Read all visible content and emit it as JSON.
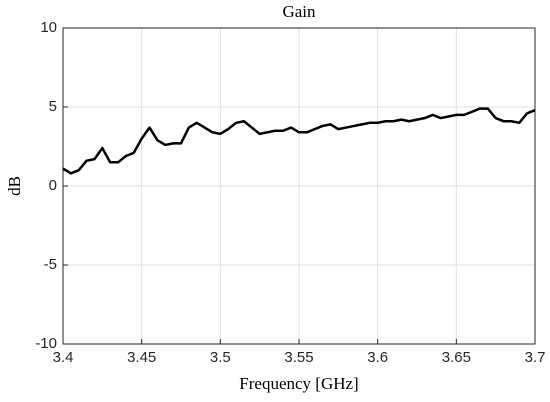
{
  "chart_data": {
    "type": "line",
    "title": "Gain",
    "xlabel": "Frequency [GHz]",
    "ylabel": "dB",
    "x": [
      3.4,
      3.405,
      3.41,
      3.415,
      3.42,
      3.425,
      3.43,
      3.435,
      3.44,
      3.445,
      3.45,
      3.455,
      3.46,
      3.465,
      3.47,
      3.475,
      3.48,
      3.485,
      3.49,
      3.495,
      3.5,
      3.505,
      3.51,
      3.515,
      3.52,
      3.525,
      3.53,
      3.535,
      3.54,
      3.545,
      3.55,
      3.555,
      3.56,
      3.565,
      3.57,
      3.575,
      3.58,
      3.585,
      3.59,
      3.595,
      3.6,
      3.605,
      3.61,
      3.615,
      3.62,
      3.625,
      3.63,
      3.635,
      3.64,
      3.645,
      3.65,
      3.655,
      3.66,
      3.665,
      3.67,
      3.675,
      3.68,
      3.685,
      3.69,
      3.695,
      3.7
    ],
    "series": [
      {
        "name": "Gain",
        "color": "#000000",
        "values": [
          1.1,
          0.8,
          1.0,
          1.6,
          1.7,
          2.4,
          1.5,
          1.5,
          1.9,
          2.1,
          3.0,
          3.7,
          2.9,
          2.6,
          2.7,
          2.7,
          3.7,
          4.0,
          3.7,
          3.4,
          3.3,
          3.6,
          4.0,
          4.1,
          3.7,
          3.3,
          3.4,
          3.5,
          3.5,
          3.7,
          3.4,
          3.4,
          3.6,
          3.8,
          3.9,
          3.6,
          3.7,
          3.8,
          3.9,
          4.0,
          4.0,
          4.1,
          4.1,
          4.2,
          4.1,
          4.2,
          4.3,
          4.5,
          4.3,
          4.4,
          4.5,
          4.5,
          4.7,
          4.9,
          4.9,
          4.3,
          4.1,
          4.1,
          4.0,
          4.6,
          4.8
        ]
      }
    ],
    "xlim": [
      3.4,
      3.7
    ],
    "xticks": [
      3.4,
      3.45,
      3.5,
      3.55,
      3.6,
      3.65,
      3.7
    ],
    "ylim": [
      -10,
      10
    ],
    "yticks": [
      -10,
      -5,
      0,
      5,
      10
    ],
    "grid": true
  }
}
